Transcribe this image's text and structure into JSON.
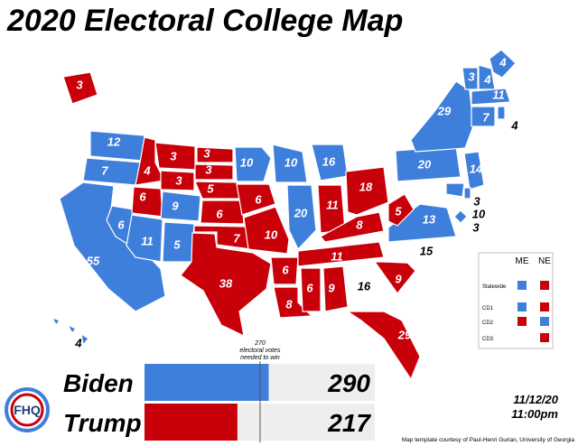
{
  "title": "2020 Electoral College Map",
  "states": [
    {
      "value": 3,
      "color": "#c8000a"
    },
    {
      "value": 12,
      "color": "#3f7fdc"
    },
    {
      "value": 7,
      "color": "#3f7fdc"
    },
    {
      "value": 55,
      "color": "#3f7fdc"
    },
    {
      "value": 6,
      "color": "#3f7fdc"
    },
    {
      "value": 4,
      "color": "#c8000a"
    },
    {
      "value": 3,
      "color": "#c8000a"
    },
    {
      "value": 3,
      "color": "#c8000a"
    },
    {
      "value": 6,
      "color": "#c8000a"
    },
    {
      "value": 9,
      "color": "#3f7fdc"
    },
    {
      "value": 11,
      "color": "#3f7fdc"
    },
    {
      "value": 5,
      "color": "#3f7fdc"
    },
    {
      "value": 3,
      "color": "#c8000a"
    },
    {
      "value": 3,
      "color": "#c8000a"
    },
    {
      "value": 5,
      "color": "#c8000a"
    },
    {
      "value": 6,
      "color": "#c8000a"
    },
    {
      "value": 7,
      "color": "#c8000a"
    },
    {
      "value": 38,
      "color": "#c8000a"
    },
    {
      "value": 10,
      "color": "#3f7fdc"
    },
    {
      "value": 6,
      "color": "#c8000a"
    },
    {
      "value": 10,
      "color": "#c8000a"
    },
    {
      "value": 6,
      "color": "#c8000a"
    },
    {
      "value": 8,
      "color": "#c8000a"
    },
    {
      "value": 10,
      "color": "#3f7fdc"
    },
    {
      "value": 20,
      "color": "#3f7fdc"
    },
    {
      "value": 16,
      "color": "#3f7fdc"
    },
    {
      "value": 11,
      "color": "#c8000a"
    },
    {
      "value": 18,
      "color": "#c8000a"
    },
    {
      "value": 8,
      "color": "#c8000a"
    },
    {
      "value": 11,
      "color": "#c8000a"
    },
    {
      "value": 6,
      "color": "#c8000a"
    },
    {
      "value": 9,
      "color": "#c8000a"
    },
    {
      "value": 16,
      "color": "#ffffff"
    },
    {
      "value": 29,
      "color": "#c8000a"
    },
    {
      "value": 9,
      "color": "#c8000a"
    },
    {
      "value": 15,
      "color": "#ffffff"
    },
    {
      "value": 13,
      "color": "#3f7fdc"
    },
    {
      "value": 5,
      "color": "#c8000a"
    },
    {
      "value": 20,
      "color": "#3f7fdc"
    },
    {
      "value": 29,
      "color": "#3f7fdc"
    },
    {
      "value": 14,
      "color": "#3f7fdc"
    },
    {
      "value": 3,
      "color": "#3f7fdc"
    },
    {
      "value": 10,
      "color": "#3f7fdc"
    },
    {
      "value": 3,
      "color": "#3f7fdc"
    },
    {
      "value": 3,
      "color": "#3f7fdc"
    },
    {
      "value": 4,
      "color": "#3f7fdc"
    },
    {
      "value": 4,
      "color": "#3f7fdc"
    },
    {
      "value": 11,
      "color": "#3f7fdc"
    },
    {
      "value": 7,
      "color": "#3f7fdc"
    },
    {
      "value": 4,
      "color": "#3f7fdc"
    },
    {
      "value": 4,
      "color": "#3f7fdc"
    }
  ],
  "district_key": {
    "columns": [
      "ME",
      "NE"
    ],
    "rows": [
      {
        "label": "Statewide",
        "colors": [
          "#3f7fdc",
          "#c8000a"
        ]
      },
      {
        "label": "CD1",
        "colors": [
          "#3f7fdc",
          "#c8000a"
        ]
      },
      {
        "label": "CD2",
        "colors": [
          "#c8000a",
          "#3f7fdc"
        ]
      },
      {
        "label": "CD3",
        "colors": [
          null,
          "#c8000a"
        ]
      }
    ]
  },
  "scoreboard": {
    "xlim": [
      0,
      538
    ],
    "threshold": 270,
    "threshold_note": [
      "electoral votes",
      "needed to win"
    ],
    "rows": [
      {
        "name": "Biden",
        "value": 290,
        "color": "#3f7fdc"
      },
      {
        "name": "Trump",
        "value": 217,
        "color": "#c8000a"
      }
    ]
  },
  "date": "11/12/20",
  "time": "11:00pm",
  "logo": "FHQ",
  "credit": "Map template courtesy of Paul-Henri Gurian, University of Georgia"
}
